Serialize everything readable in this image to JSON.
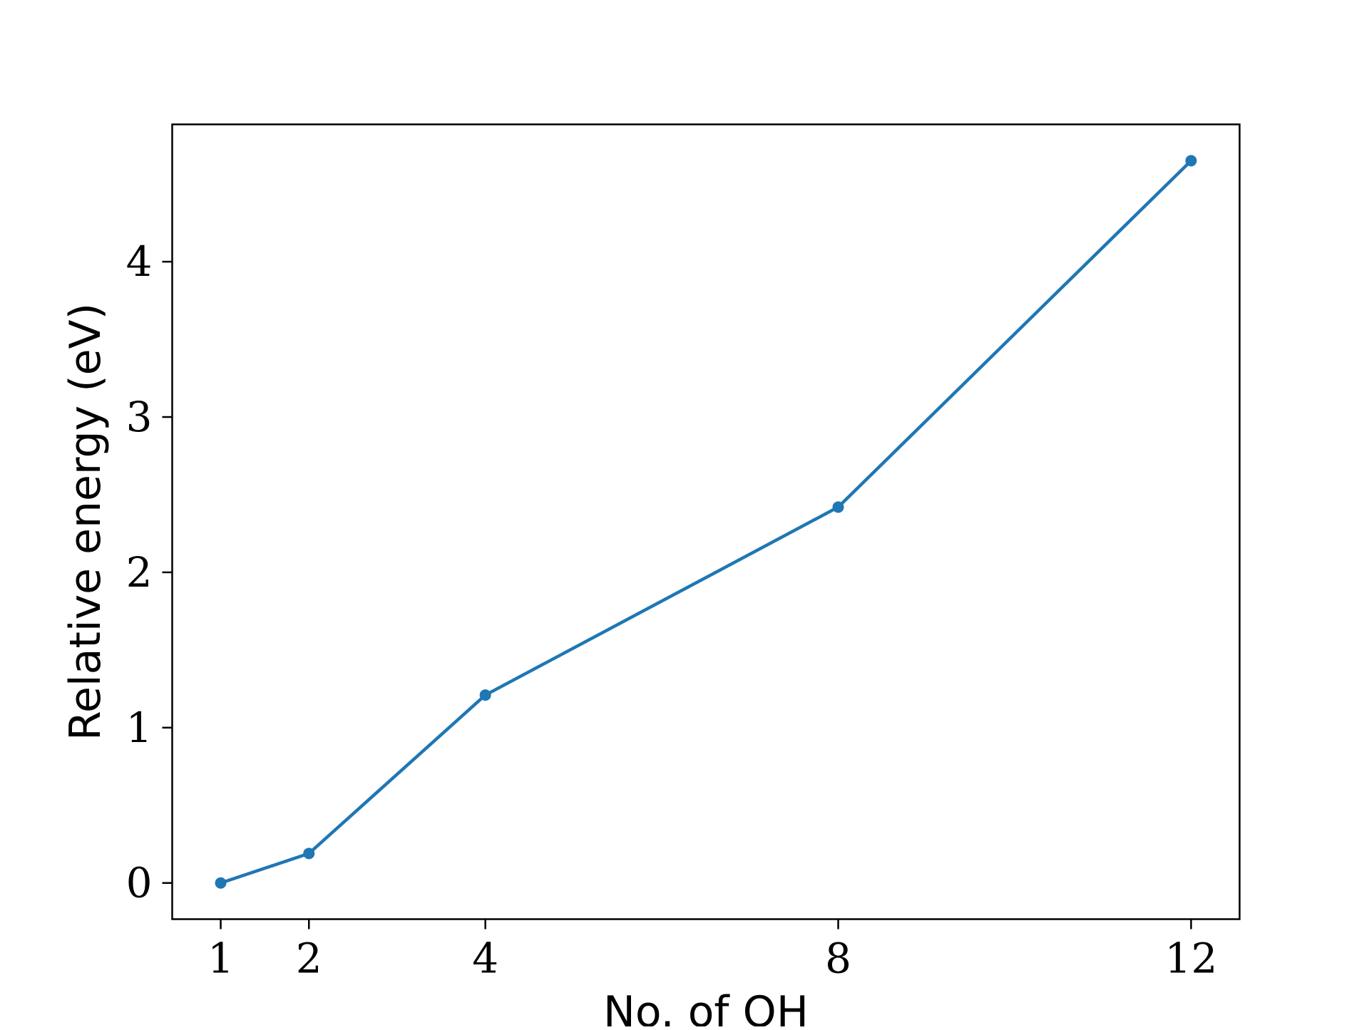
{
  "chart_data": {
    "type": "line",
    "title": "",
    "xlabel": "No. of OH",
    "ylabel": "Relative energy (eV)",
    "x": [
      1,
      2,
      4,
      8,
      12
    ],
    "series": [
      {
        "values": [
          0.0,
          0.19,
          1.21,
          2.42,
          4.65
        ],
        "color": "#1f77b4",
        "marker": "circle"
      }
    ],
    "xticks": [
      1,
      2,
      4,
      8,
      12
    ],
    "yticks": [
      0,
      1,
      2,
      3,
      4
    ],
    "xlim": [
      0.45,
      12.55
    ],
    "ylim": [
      -0.233,
      4.884
    ],
    "grid": false,
    "legend": "none"
  }
}
